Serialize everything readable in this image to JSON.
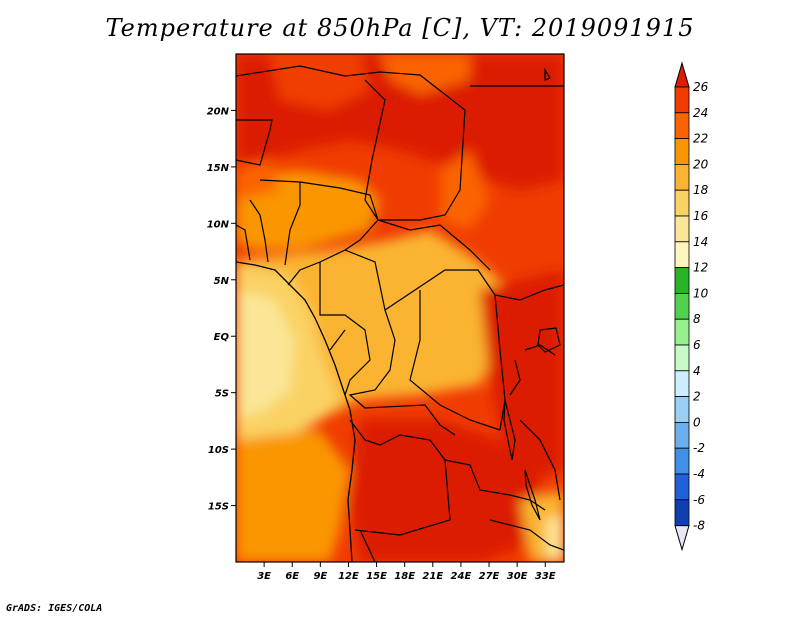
{
  "title": "Temperature at 850hPa [C], VT: 2019091915",
  "footer": "GrADS: IGES/COLA",
  "map": {
    "projection": "latlon",
    "lon_range": [
      0,
      35
    ],
    "lat_range": [
      -20,
      25
    ],
    "lat_ticks": [
      {
        "value": 20,
        "label": "20N"
      },
      {
        "value": 15,
        "label": "15N"
      },
      {
        "value": 10,
        "label": "10N"
      },
      {
        "value": 5,
        "label": "5N"
      },
      {
        "value": 0,
        "label": "EQ"
      },
      {
        "value": -5,
        "label": "5S"
      },
      {
        "value": -10,
        "label": "10S"
      },
      {
        "value": -15,
        "label": "15S"
      }
    ],
    "lon_ticks": [
      {
        "value": 3,
        "label": "3E"
      },
      {
        "value": 6,
        "label": "6E"
      },
      {
        "value": 9,
        "label": "9E"
      },
      {
        "value": 12,
        "label": "12E"
      },
      {
        "value": 15,
        "label": "15E"
      },
      {
        "value": 18,
        "label": "18E"
      },
      {
        "value": 21,
        "label": "21E"
      },
      {
        "value": 24,
        "label": "24E"
      },
      {
        "value": 27,
        "label": "27E"
      },
      {
        "value": 30,
        "label": "30E"
      },
      {
        "value": 33,
        "label": "33E"
      }
    ]
  },
  "colorbar": {
    "levels": [
      "26",
      "24",
      "22",
      "20",
      "18",
      "16",
      "14",
      "12",
      "10",
      "8",
      "6",
      "4",
      "2",
      "0",
      "-2",
      "-4",
      "-6",
      "-8"
    ],
    "colors": [
      "#dc1e00",
      "#f03c00",
      "#fa6400",
      "#fa9600",
      "#fab432",
      "#fad264",
      "#fae696",
      "#fff5be",
      "#28b428",
      "#50d250",
      "#96f08c",
      "#c8fac8",
      "#cceeff",
      "#9ad0f5",
      "#6ab0ee",
      "#4090e6",
      "#2060d8",
      "#1040b0",
      "#0a1a80"
    ],
    "top_color": "#dc1e00",
    "bottom_color": "#e6e6f5"
  }
}
